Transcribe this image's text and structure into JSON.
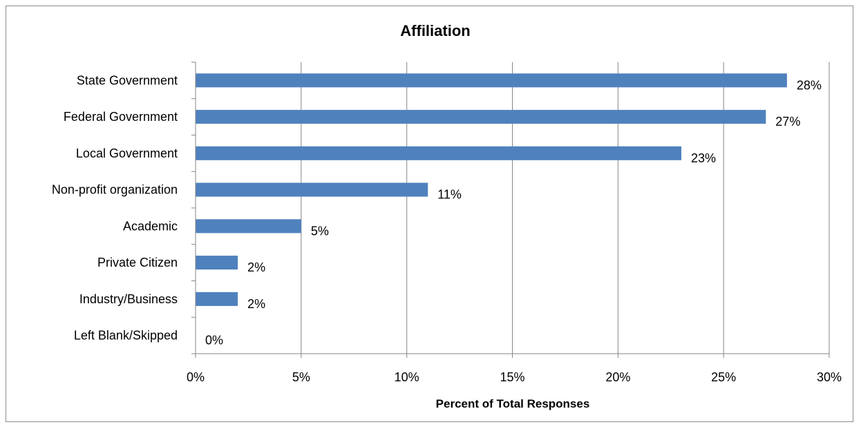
{
  "chart_data": {
    "type": "bar",
    "orientation": "horizontal",
    "title": "Affiliation",
    "xlabel": "Percent of Total Responses",
    "ylabel": "",
    "categories": [
      "State Government",
      "Federal Government",
      "Local Government",
      "Non-profit organization",
      "Academic",
      "Private Citizen",
      "Industry/Business",
      "Left Blank/Skipped"
    ],
    "values": [
      28,
      27,
      23,
      11,
      5,
      2,
      2,
      0
    ],
    "data_labels": [
      "28%",
      "27%",
      "23%",
      "11%",
      "5%",
      "2%",
      "2%",
      "0%"
    ],
    "xlim": [
      0,
      30
    ],
    "xticks": [
      0,
      5,
      10,
      15,
      20,
      25,
      30
    ],
    "xtick_labels": [
      "0%",
      "5%",
      "10%",
      "15%",
      "20%",
      "25%",
      "30%"
    ],
    "grid": "vertical",
    "legend": "none",
    "bar_color": "#4f81bd",
    "grid_color": "#868686"
  }
}
